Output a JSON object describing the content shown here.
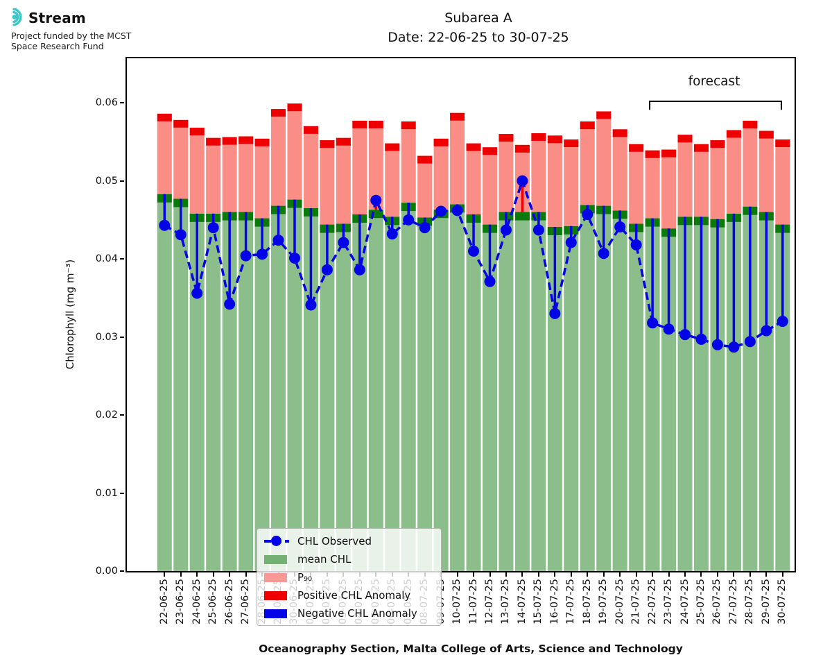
{
  "branding": {
    "logo_text": "Stream",
    "funding_line1": "Project funded by the MCST",
    "funding_line2": "Space Research Fund",
    "logo_color": "#3EC6C6"
  },
  "title": {
    "line1": "Subarea A",
    "line2": "Date: 22-06-25 to 30-07-25"
  },
  "chart_data": {
    "type": "bar",
    "title": "Subarea A",
    "subtitle": "Date: 22-06-25 to 30-07-25",
    "xlabel": "Oceanography Section, Malta College of Arts, Science and Technology",
    "ylabel": "Chlorophyll (mg m⁻³)",
    "ylim": [
      0,
      0.0657
    ],
    "yticks": [
      0,
      0.01,
      0.02,
      0.03,
      0.04,
      0.05,
      0.06
    ],
    "grid": false,
    "categories": [
      "22-06-25",
      "23-06-25",
      "24-06-25",
      "25-06-25",
      "26-06-25",
      "27-06-25",
      "28-06-25",
      "29-06-25",
      "30-06-25",
      "01-07-25",
      "02-07-25",
      "03-07-25",
      "04-07-25",
      "05-07-25",
      "06-07-25",
      "07-07-25",
      "08-07-25",
      "09-07-25",
      "10-07-25",
      "11-07-25",
      "12-07-25",
      "13-07-25",
      "14-07-25",
      "15-07-25",
      "16-07-25",
      "17-07-25",
      "18-07-25",
      "19-07-25",
      "20-07-25",
      "21-07-25",
      "22-07-25",
      "23-07-25",
      "24-07-25",
      "25-07-25",
      "26-07-25",
      "27-07-25",
      "28-07-25",
      "29-07-25",
      "30-07-25"
    ],
    "series": [
      {
        "name": "mean CHL",
        "type": "bar",
        "values": [
          0.0483,
          0.0477,
          0.0458,
          0.0458,
          0.046,
          0.046,
          0.0452,
          0.0468,
          0.0476,
          0.0465,
          0.0444,
          0.0445,
          0.0457,
          0.0463,
          0.0454,
          0.0472,
          0.0453,
          0.0463,
          0.047,
          0.0457,
          0.0444,
          0.046,
          0.046,
          0.046,
          0.0441,
          0.0442,
          0.0469,
          0.0468,
          0.0462,
          0.0445,
          0.0452,
          0.0439,
          0.0454,
          0.0454,
          0.0451,
          0.0458,
          0.0467,
          0.046,
          0.0444
        ]
      },
      {
        "name": "P90",
        "type": "bar",
        "values": [
          0.0586,
          0.0578,
          0.0568,
          0.0555,
          0.0556,
          0.0557,
          0.0554,
          0.0592,
          0.0599,
          0.057,
          0.0552,
          0.0555,
          0.0577,
          0.0577,
          0.0548,
          0.0576,
          0.0532,
          0.0554,
          0.0587,
          0.0548,
          0.0543,
          0.056,
          0.0546,
          0.0561,
          0.0558,
          0.0553,
          0.0576,
          0.0589,
          0.0566,
          0.0547,
          0.0539,
          0.054,
          0.0559,
          0.0547,
          0.0552,
          0.0565,
          0.0577,
          0.0564,
          0.0553
        ]
      },
      {
        "name": "CHL Observed",
        "type": "line-dashed-markers",
        "values": [
          0.0443,
          0.0431,
          0.0356,
          0.044,
          0.0342,
          0.0404,
          0.0406,
          0.0424,
          0.0401,
          0.0341,
          0.0386,
          0.0421,
          0.0386,
          0.0475,
          0.0432,
          0.045,
          0.044,
          0.0461,
          0.0462,
          0.041,
          0.0371,
          0.0437,
          0.05,
          0.0437,
          0.033,
          0.0421,
          0.0457,
          0.0407,
          0.0441,
          0.0418,
          0.0318,
          0.031,
          0.0303,
          0.0297,
          0.029,
          0.0287,
          0.0294,
          0.0308,
          0.032
        ]
      }
    ],
    "annotations": {
      "forecast_label": "forecast",
      "forecast_start_category": "22-07-25",
      "forecast_end_category": "30-07-25",
      "forecast_start_index": 30,
      "forecast_end_index": 38
    },
    "legend": {
      "position": "lower left",
      "entries": [
        {
          "label": "CHL Observed",
          "swatch": "observed"
        },
        {
          "label": "mean CHL",
          "swatch": "mean"
        },
        {
          "label": "P₉₀",
          "swatch": "p90"
        },
        {
          "label": "Positive CHL Anomaly",
          "swatch": "positive"
        },
        {
          "label": "Negative CHL Anomaly",
          "swatch": "negative"
        }
      ]
    },
    "colors": {
      "mean_fill": "#8CBE8C",
      "mean_edge": "#0A7A0A",
      "p90_fill": "#FA8D86",
      "p90_edge": "#EE0000",
      "observed_blue": "#0404E6",
      "positive_anomaly_red": "#EE0000",
      "negative_anomaly_blue": "#0404E6"
    }
  }
}
